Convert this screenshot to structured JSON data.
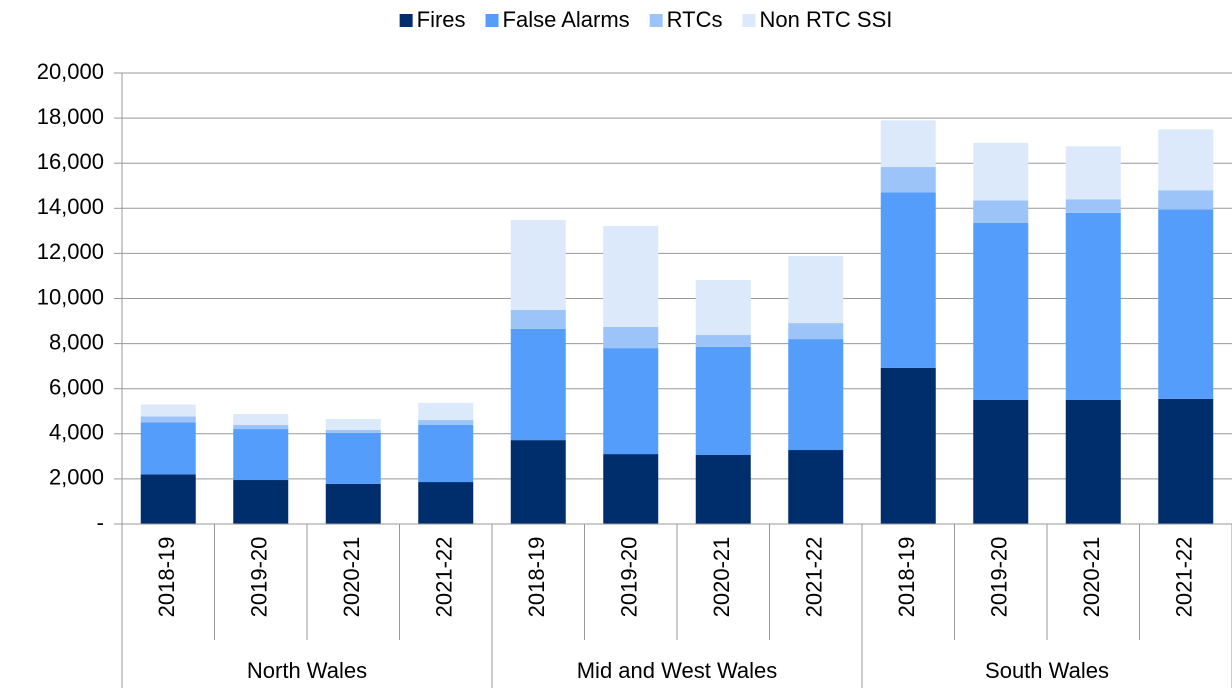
{
  "chart_data": {
    "type": "stacked_bar",
    "categories": [
      "2018-19",
      "2019-20",
      "2020-21",
      "2021-22",
      "2018-19",
      "2019-20",
      "2020-21",
      "2021-22",
      "2018-19",
      "2019-20",
      "2020-21",
      "2021-22"
    ],
    "groups": [
      "North Wales",
      "Mid and West Wales",
      "South Wales"
    ],
    "series": [
      {
        "name": "Fires",
        "color": "#002d6b",
        "values": [
          2200,
          1950,
          1780,
          1860,
          3720,
          3100,
          3060,
          3280,
          6920,
          5500,
          5500,
          5550
        ]
      },
      {
        "name": "False Alarms",
        "color": "#559dfa",
        "values": [
          2300,
          2260,
          2260,
          2530,
          4930,
          4700,
          4790,
          4920,
          7780,
          7850,
          8300,
          8400
        ]
      },
      {
        "name": "RTCs",
        "color": "#9dc4f8",
        "values": [
          270,
          180,
          130,
          220,
          840,
          940,
          530,
          710,
          1130,
          1000,
          600,
          850
        ]
      },
      {
        "name": "Non RTC SSI",
        "color": "#dbe9fb",
        "values": [
          530,
          490,
          490,
          760,
          3990,
          4480,
          2440,
          2970,
          2070,
          2550,
          2350,
          2700
        ]
      }
    ],
    "ylim": [
      0,
      20000
    ],
    "yticks": [
      {
        "value": 0,
        "label": "-"
      },
      {
        "value": 2000,
        "label": "2,000"
      },
      {
        "value": 4000,
        "label": "4,000"
      },
      {
        "value": 6000,
        "label": "6,000"
      },
      {
        "value": 8000,
        "label": "8,000"
      },
      {
        "value": 10000,
        "label": "10,000"
      },
      {
        "value": 12000,
        "label": "12,000"
      },
      {
        "value": 14000,
        "label": "14,000"
      },
      {
        "value": 16000,
        "label": "16,000"
      },
      {
        "value": 18000,
        "label": "18,000"
      },
      {
        "value": 20000,
        "label": "20,000"
      }
    ],
    "grid": true,
    "legend": "top"
  }
}
